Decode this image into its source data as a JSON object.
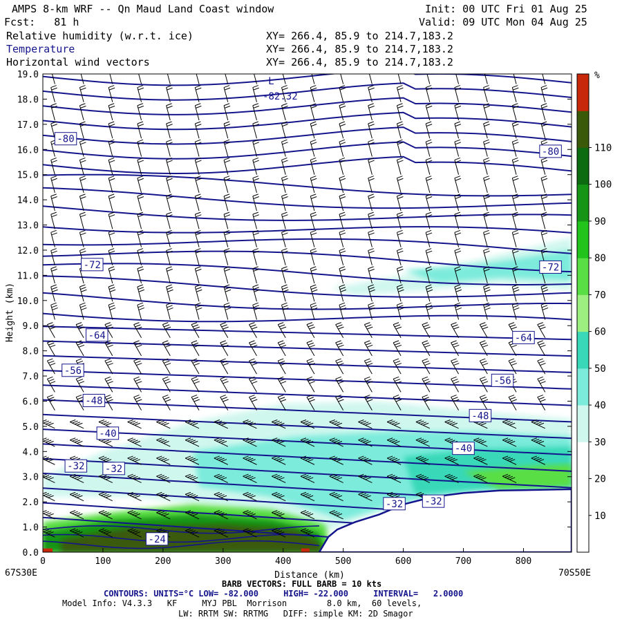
{
  "header": {
    "title": "AMPS 8-km WRF -- Qn Maud Land Coast window",
    "init": "Init: 00 UTC Fri 01 Aug 25",
    "fcst": "Fcst:   81 h",
    "valid": "Valid: 09 UTC Mon 04 Aug 25",
    "fields": [
      {
        "name": "Relative humidity (w.r.t. ice)",
        "xy": "XY= 266.4, 85.9 to 214.7,183.2"
      },
      {
        "name": "Temperature",
        "xy": "XY= 266.4, 85.9 to 214.7,183.2"
      },
      {
        "name": "Horizontal wind vectors",
        "xy": "XY= 266.4, 85.9 to 214.7,183.2"
      }
    ]
  },
  "footer": {
    "left_endpoint": "67S30E",
    "right_endpoint": "70S50E",
    "barb_note": "BARB VECTORS: FULL BARB = 10 kts",
    "contours_note": "CONTOURS: UNITS=°C LOW= -82.000     HIGH= -22.000     INTERVAL=   2.0000",
    "model_line1": "Model Info: V4.3.3   KF     MYJ PBL  Morrison        8.0 km,  60 levels,",
    "model_line2": "LW: RRTM SW: RRTMG   DIFF: simple KM: 2D Smagor"
  },
  "chart_data": {
    "type": "contour",
    "xlabel": "Distance (km)",
    "ylabel": "Height (km)",
    "xlim": [
      0,
      880
    ],
    "ylim": [
      0,
      19
    ],
    "x_ticks": [
      0,
      100,
      200,
      300,
      400,
      500,
      600,
      700,
      800
    ],
    "y_ticks": [
      "0.0",
      "1.0",
      "2.0",
      "3.0",
      "4.0",
      "5.0",
      "6.0",
      "7.0",
      "8.0",
      "9.0",
      "10.0",
      "11.0",
      "12.0",
      "13.0",
      "14.0",
      "15.0",
      "16.0",
      "17.0",
      "18.0",
      "19.0"
    ],
    "colorbar": {
      "unit": "%",
      "ticks": [
        "10",
        "20",
        "30",
        "40",
        "50",
        "60",
        "70",
        "80",
        "90",
        "100",
        "110"
      ],
      "colors": [
        "#ffffff",
        "#ffffff",
        "#ffffff",
        "#d0f7ee",
        "#7cebdb",
        "#38d8b8",
        "#9df07f",
        "#5ade45",
        "#22c41c",
        "#159415",
        "#0c6a10",
        "#3a5a0a",
        "#c8280a"
      ]
    },
    "temperature_labels": [
      {
        "text": "-82.32",
        "x": 395,
        "y": 18.1
      },
      {
        "text": "L",
        "x": 380,
        "y": 18.7
      },
      {
        "text": "-80",
        "x": 38,
        "y": 16.4
      },
      {
        "text": "-80",
        "x": 845,
        "y": 15.9
      },
      {
        "text": "-72",
        "x": 82,
        "y": 11.4
      },
      {
        "text": "-72",
        "x": 845,
        "y": 11.3
      },
      {
        "text": "-64",
        "x": 90,
        "y": 8.6
      },
      {
        "text": "-64",
        "x": 800,
        "y": 8.5
      },
      {
        "text": "-56",
        "x": 50,
        "y": 7.2
      },
      {
        "text": "-56",
        "x": 765,
        "y": 6.8
      },
      {
        "text": "-48",
        "x": 85,
        "y": 6.0
      },
      {
        "text": "-48",
        "x": 728,
        "y": 5.4
      },
      {
        "text": "-40",
        "x": 108,
        "y": 4.7
      },
      {
        "text": "-40",
        "x": 700,
        "y": 4.1
      },
      {
        "text": "-32",
        "x": 55,
        "y": 3.4
      },
      {
        "text": "-32",
        "x": 118,
        "y": 3.3
      },
      {
        "text": "-24",
        "x": 190,
        "y": 0.5
      },
      {
        "text": "-32",
        "x": 585,
        "y": 1.9
      },
      {
        "text": "-32",
        "x": 650,
        "y": 2.0
      }
    ],
    "terrain_profile": [
      [
        460,
        0
      ],
      [
        475,
        0.6
      ],
      [
        490,
        0.9
      ],
      [
        520,
        1.2
      ],
      [
        560,
        1.5
      ],
      [
        600,
        1.9
      ],
      [
        650,
        2.2
      ],
      [
        700,
        2.35
      ],
      [
        760,
        2.45
      ],
      [
        880,
        2.5
      ]
    ],
    "temperature_contour_levels": [
      -82,
      -22,
      2
    ]
  }
}
